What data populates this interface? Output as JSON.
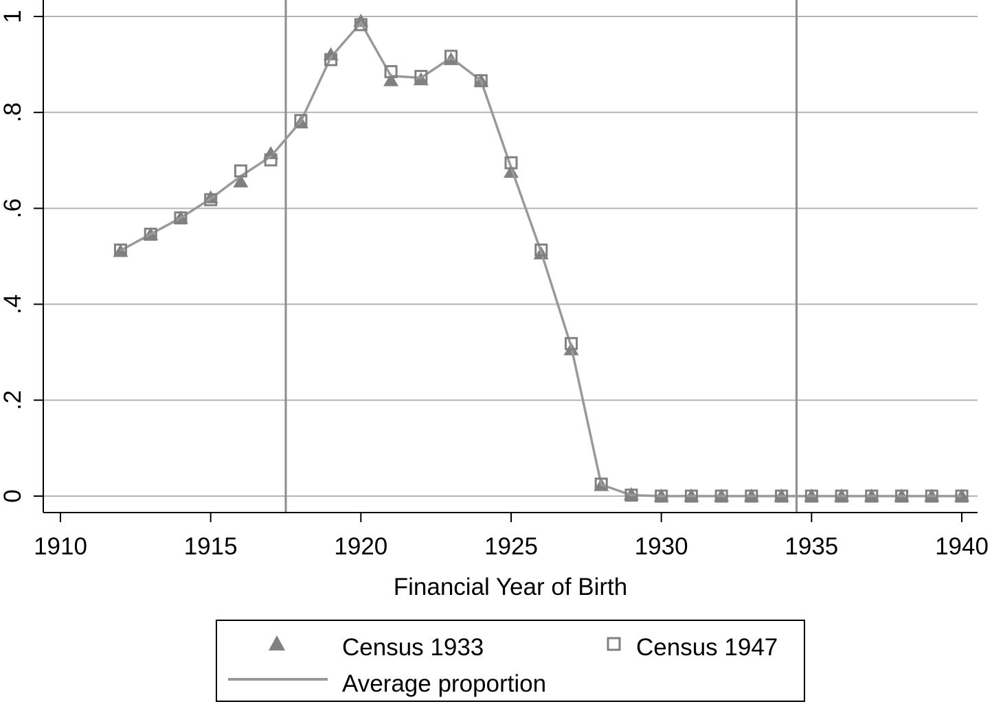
{
  "chart_data": {
    "type": "line",
    "title": "",
    "xlabel": "Financial Year of Birth",
    "ylabel": "",
    "xlim": [
      1909.5,
      1940.5
    ],
    "ylim": [
      -0.034,
      1.03
    ],
    "xticks": [
      1910,
      1915,
      1920,
      1925,
      1930,
      1935,
      1940
    ],
    "xtick_labels": [
      "1910",
      "1915",
      "1920",
      "1925",
      "1930",
      "1935",
      "1940"
    ],
    "yticks": [
      0,
      0.2,
      0.4,
      0.6,
      0.8,
      1
    ],
    "ytick_labels": [
      "0",
      ".2",
      ".4",
      ".6",
      ".8",
      "1"
    ],
    "grid": "horizontal",
    "vertical_lines": [
      1917.5,
      1934.5
    ],
    "x": [
      1912,
      1913,
      1914,
      1915,
      1916,
      1917,
      1918,
      1919,
      1920,
      1921,
      1922,
      1923,
      1924,
      1925,
      1926,
      1927,
      1928,
      1929,
      1930,
      1931,
      1932,
      1933,
      1934,
      1935,
      1936,
      1937,
      1938,
      1939,
      1940
    ],
    "series": [
      {
        "name": "Census 1933",
        "marker": "triangle",
        "values": [
          0.51,
          0.545,
          0.58,
          0.622,
          0.655,
          0.714,
          0.778,
          0.92,
          0.99,
          0.866,
          0.868,
          0.91,
          0.865,
          0.675,
          0.505,
          0.305,
          0.022,
          0.003,
          0,
          0,
          0,
          0,
          0,
          0,
          0,
          0,
          0,
          0,
          0
        ]
      },
      {
        "name": "Census 1947",
        "marker": "hollow-square",
        "values": [
          0.513,
          0.546,
          0.58,
          0.618,
          0.678,
          0.701,
          0.783,
          0.91,
          0.983,
          0.885,
          0.875,
          0.917,
          0.866,
          0.695,
          0.513,
          0.318,
          0.025,
          0.002,
          0,
          0,
          0,
          0,
          0,
          0,
          0,
          0,
          0,
          0,
          0
        ]
      },
      {
        "name": "Average proportion",
        "marker": "line",
        "values": [
          0.512,
          0.546,
          0.58,
          0.62,
          0.667,
          0.708,
          0.781,
          0.915,
          0.987,
          0.876,
          0.872,
          0.914,
          0.866,
          0.685,
          0.509,
          0.312,
          0.024,
          0.002,
          0,
          0,
          0,
          0,
          0,
          0,
          0,
          0,
          0,
          0,
          0
        ]
      }
    ],
    "legend_position": "bottom"
  },
  "legend": {
    "item1": "Census 1933",
    "item2": "Census 1947",
    "item3": "Average proportion"
  },
  "colors": {
    "marker": "#808080",
    "line": "#999999",
    "grid": "#b4b4b4",
    "vline": "#8c8c8c"
  }
}
